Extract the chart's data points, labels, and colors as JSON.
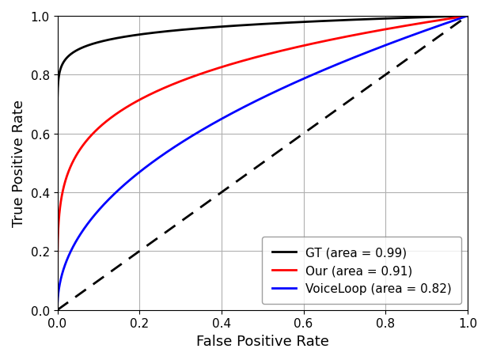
{
  "title": "",
  "xlabel": "False Positive Rate",
  "ylabel": "True Positive Rate",
  "curves": [
    {
      "label": "GT (area = 0.99)",
      "color": "#000000",
      "linewidth": 2.0,
      "alpha_power": 0.0408
    },
    {
      "label": "Our (area = 0.91)",
      "color": "#ff0000",
      "linewidth": 2.0,
      "alpha_power": 0.209
    },
    {
      "label": "VoiceLoop (area = 0.82)",
      "color": "#0000ff",
      "linewidth": 2.0,
      "alpha_power": 0.471
    }
  ],
  "diagonal_color": "#000000",
  "diagonal_linewidth": 2.0,
  "diagonal_linestyle": "--",
  "xlim": [
    0.0,
    1.0
  ],
  "ylim": [
    0.0,
    1.0
  ],
  "xticks": [
    0.0,
    0.2,
    0.4,
    0.6,
    0.8,
    1.0
  ],
  "yticks": [
    0.0,
    0.2,
    0.4,
    0.6,
    0.8,
    1.0
  ],
  "grid": true,
  "grid_color": "#b0b0b0",
  "grid_linewidth": 0.8,
  "legend_loc": "lower right",
  "legend_fontsize": 11,
  "tick_fontsize": 11,
  "label_fontsize": 13,
  "figsize": [
    6.18,
    4.56
  ],
  "dpi": 100
}
